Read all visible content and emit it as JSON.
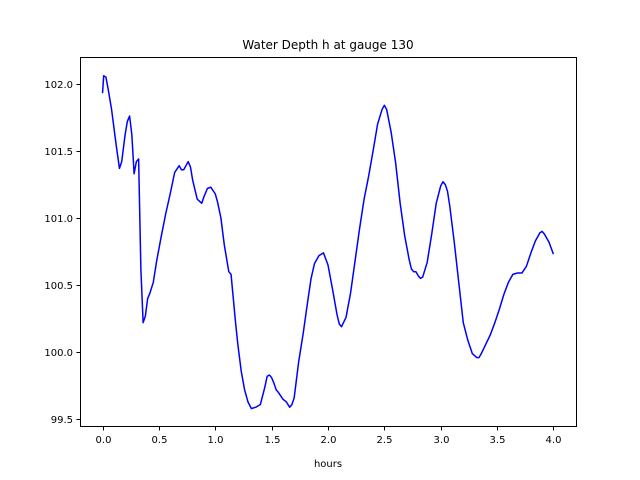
{
  "chart_data": {
    "type": "line",
    "title": "Water Depth h at gauge 130",
    "xlabel": "hours",
    "ylabel": "",
    "xlim": [
      -0.2,
      4.2
    ],
    "ylim": [
      99.45,
      102.2
    ],
    "xticks": [
      0.0,
      0.5,
      1.0,
      1.5,
      2.0,
      2.5,
      3.0,
      3.5,
      4.0
    ],
    "xtick_labels": [
      "0.0",
      "0.5",
      "1.0",
      "1.5",
      "2.0",
      "2.5",
      "3.0",
      "3.5",
      "4.0"
    ],
    "yticks": [
      99.5,
      100.0,
      100.5,
      101.0,
      101.5,
      102.0
    ],
    "ytick_labels": [
      "99.5",
      "100.0",
      "100.5",
      "101.0",
      "101.5",
      "102.0"
    ],
    "grid": false,
    "legend": "none",
    "series": [
      {
        "color": "#0000ff",
        "x": [
          0.0,
          0.01,
          0.03,
          0.05,
          0.08,
          0.12,
          0.15,
          0.17,
          0.2,
          0.22,
          0.24,
          0.26,
          0.28,
          0.3,
          0.32,
          0.34,
          0.36,
          0.38,
          0.4,
          0.42,
          0.45,
          0.48,
          0.52,
          0.56,
          0.6,
          0.64,
          0.68,
          0.7,
          0.72,
          0.74,
          0.76,
          0.78,
          0.8,
          0.84,
          0.88,
          0.9,
          0.93,
          0.96,
          1.0,
          1.02,
          1.05,
          1.08,
          1.12,
          1.14,
          1.16,
          1.18,
          1.2,
          1.23,
          1.26,
          1.29,
          1.32,
          1.36,
          1.4,
          1.44,
          1.46,
          1.48,
          1.5,
          1.52,
          1.54,
          1.56,
          1.6,
          1.63,
          1.66,
          1.68,
          1.7,
          1.74,
          1.78,
          1.82,
          1.85,
          1.88,
          1.92,
          1.96,
          2.0,
          2.04,
          2.08,
          2.1,
          2.12,
          2.16,
          2.2,
          2.24,
          2.28,
          2.32,
          2.36,
          2.4,
          2.44,
          2.48,
          2.5,
          2.52,
          2.56,
          2.6,
          2.64,
          2.68,
          2.72,
          2.74,
          2.76,
          2.78,
          2.8,
          2.82,
          2.84,
          2.88,
          2.92,
          2.96,
          3.0,
          3.02,
          3.04,
          3.06,
          3.08,
          3.12,
          3.16,
          3.2,
          3.24,
          3.28,
          3.32,
          3.34,
          3.36,
          3.4,
          3.44,
          3.48,
          3.52,
          3.56,
          3.6,
          3.64,
          3.68,
          3.72,
          3.76,
          3.8,
          3.84,
          3.88,
          3.9,
          3.92,
          3.96,
          4.0
        ],
        "y": [
          101.93,
          102.06,
          102.05,
          101.96,
          101.81,
          101.55,
          101.37,
          101.42,
          101.62,
          101.72,
          101.76,
          101.62,
          101.33,
          101.42,
          101.44,
          100.62,
          100.22,
          100.27,
          100.4,
          100.44,
          100.52,
          100.68,
          100.86,
          101.03,
          101.18,
          101.34,
          101.39,
          101.36,
          101.36,
          101.39,
          101.42,
          101.38,
          101.28,
          101.14,
          101.11,
          101.16,
          101.22,
          101.23,
          101.18,
          101.12,
          101.0,
          100.8,
          100.6,
          100.58,
          100.4,
          100.22,
          100.06,
          99.86,
          99.72,
          99.63,
          99.58,
          99.59,
          99.61,
          99.74,
          99.82,
          99.83,
          99.81,
          99.77,
          99.72,
          99.7,
          99.65,
          99.63,
          99.59,
          99.61,
          99.66,
          99.93,
          100.14,
          100.38,
          100.55,
          100.66,
          100.72,
          100.74,
          100.65,
          100.47,
          100.28,
          100.21,
          100.19,
          100.26,
          100.44,
          100.68,
          100.92,
          101.14,
          101.31,
          101.5,
          101.7,
          101.81,
          101.84,
          101.81,
          101.64,
          101.41,
          101.11,
          100.87,
          100.69,
          100.62,
          100.6,
          100.6,
          100.57,
          100.55,
          100.56,
          100.67,
          100.88,
          101.11,
          101.24,
          101.27,
          101.25,
          101.2,
          101.09,
          100.82,
          100.52,
          100.22,
          100.09,
          99.99,
          99.96,
          99.96,
          99.99,
          100.06,
          100.13,
          100.22,
          100.32,
          100.43,
          100.52,
          100.58,
          100.59,
          100.59,
          100.64,
          100.74,
          100.83,
          100.89,
          100.9,
          100.88,
          100.82,
          100.73
        ]
      }
    ]
  }
}
